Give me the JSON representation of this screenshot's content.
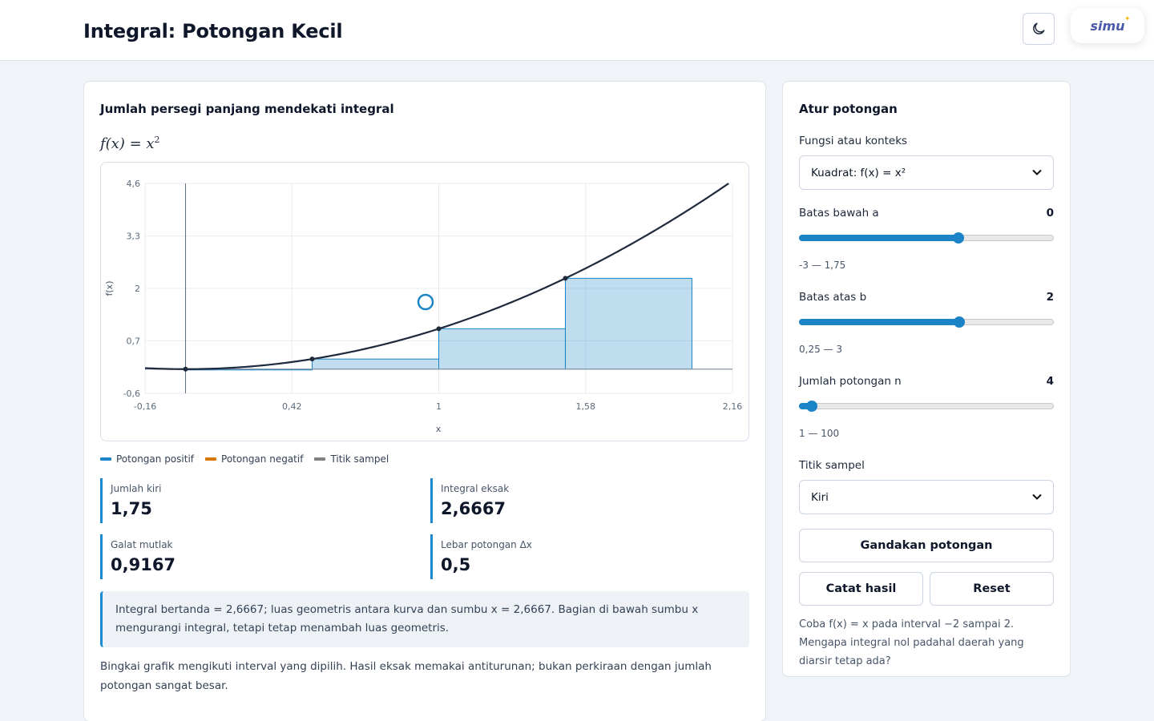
{
  "header": {
    "title": "Integral: Potongan Kecil",
    "theme_toggle_icon": "moon-icon",
    "logo_text": "simu"
  },
  "main": {
    "card_title": "Jumlah persegi panjang mendekati integral",
    "formula_lhs": "f(x) = x",
    "formula_exp": "2",
    "legend": [
      {
        "label": "Potongan positif",
        "color": "#1b84c6"
      },
      {
        "label": "Potongan negatif",
        "color": "#d97706"
      },
      {
        "label": "Titik sampel",
        "color": "#808080"
      }
    ],
    "stats": [
      {
        "label": "Jumlah kiri",
        "value": "1,75"
      },
      {
        "label": "Integral eksak",
        "value": "2,6667"
      },
      {
        "label": "Galat mutlak",
        "value": "0,9167"
      },
      {
        "label": "Lebar potongan Δx",
        "value": "0,5"
      }
    ],
    "note": "Integral bertanda = 2,6667; luas geometris antara kurva dan sumbu x = 2,6667. Bagian di bawah sumbu x mengurangi integral, tetapi tetap menambah luas geometris.",
    "footnote": "Bingkai grafik mengikuti interval yang dipilih. Hasil eksak memakai antiturunan; bukan perkiraan dengan jumlah potongan sangat besar."
  },
  "chart_data": {
    "type": "area",
    "function": "x^2",
    "xlabel": "x",
    "ylabel": "f(x)",
    "xlim": [
      -0.16,
      2.16
    ],
    "ylim": [
      -0.6,
      4.6
    ],
    "x_ticks": [
      -0.16,
      0.42,
      1,
      1.58,
      2.16
    ],
    "x_tick_labels": [
      "-0,16",
      "0,42",
      "1",
      "1,58",
      "2,16"
    ],
    "y_ticks": [
      -0.6,
      0.7,
      2,
      3.3,
      4.6
    ],
    "y_tick_labels": [
      "-0,6",
      "0,7",
      "2",
      "3,3",
      "4,6"
    ],
    "rectangles": [
      {
        "x0": 0,
        "x1": 0.5,
        "height": 0
      },
      {
        "x0": 0.5,
        "x1": 1,
        "height": 0.25
      },
      {
        "x0": 1,
        "x1": 1.5,
        "height": 1
      },
      {
        "x0": 1.5,
        "x1": 2,
        "height": 2.25
      }
    ],
    "sample_points": [
      {
        "x": 0,
        "y": 0
      },
      {
        "x": 0.5,
        "y": 0.25
      },
      {
        "x": 1,
        "y": 1
      },
      {
        "x": 1.5,
        "y": 2.25
      }
    ],
    "grid": true,
    "curve_color": "#1e293b",
    "rect_color": "#1b84c6"
  },
  "side": {
    "title": "Atur potongan",
    "function_label": "Fungsi atau konteks",
    "function_selected": "Kuadrat: f(x) = x²",
    "lower_label": "Batas bawah a",
    "lower_value": "0",
    "lower_range": "-3 — 1,75",
    "lower_slider": {
      "min": -3,
      "max": 1.75,
      "value": 0
    },
    "upper_label": "Batas atas b",
    "upper_value": "2",
    "upper_range": "0,25 — 3",
    "upper_slider": {
      "min": 0.25,
      "max": 3,
      "value": 2
    },
    "n_label": "Jumlah potongan n",
    "n_value": "4",
    "n_range": "1 — 100",
    "n_slider": {
      "min": 1,
      "max": 100,
      "value": 4
    },
    "sample_label": "Titik sampel",
    "sample_selected": "Kiri",
    "double_button": "Gandakan potongan",
    "record_button": "Catat hasil",
    "reset_button": "Reset",
    "hint": "Coba f(x) = x pada interval −2 sampai 2. Mengapa integral nol padahal daerah yang diarsir tetap ada?"
  }
}
